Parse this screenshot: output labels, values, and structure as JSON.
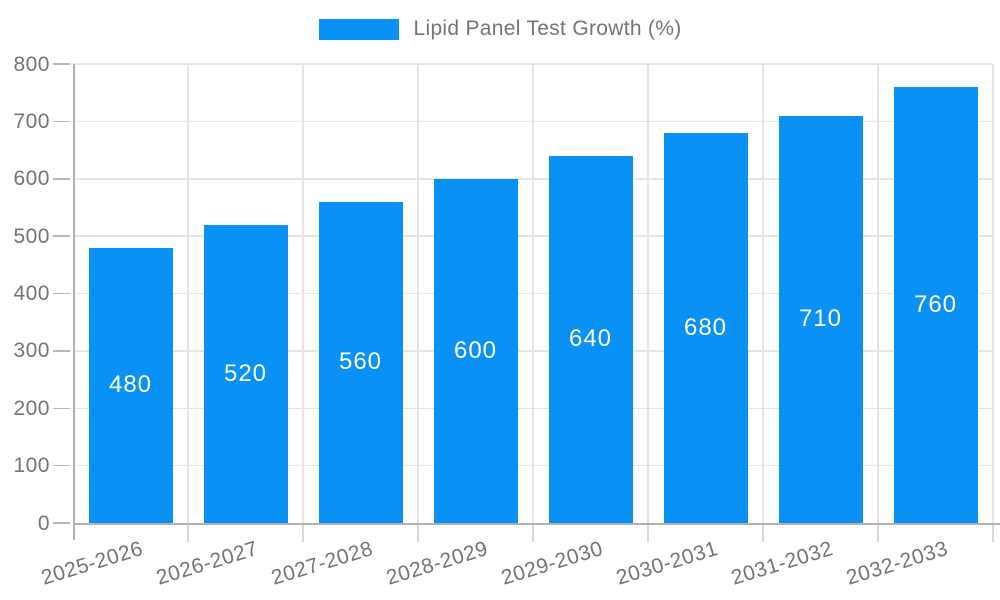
{
  "legend": {
    "label": "Lipid Panel Test Growth (%)"
  },
  "colors": {
    "bar": "#0a91f5",
    "axis_line": "#b1b1b1",
    "gridline": "#e5e5e5",
    "y_tick": "#b8b8b8",
    "x_tick": "#d9d9d9",
    "axis_text": "#757575",
    "bar_label_text": "#ffffff",
    "background": "#ffffff"
  },
  "chart_data": {
    "type": "bar",
    "title": "Lipid Panel Test Growth (%)",
    "categories": [
      "2025-2026",
      "2026-2027",
      "2027-2028",
      "2028-2029",
      "2029-2030",
      "2030-2031",
      "2031-2032",
      "2032-2033"
    ],
    "values": [
      480,
      520,
      560,
      600,
      640,
      680,
      710,
      760
    ],
    "xlabel": "",
    "ylabel": "",
    "ylim": [
      0,
      800
    ],
    "yticks": [
      0,
      100,
      200,
      300,
      400,
      500,
      600,
      700,
      800
    ],
    "grid": true,
    "legend_position": "top",
    "bar_labels": "centered-inside-white",
    "x_label_rotation_deg": -17
  }
}
